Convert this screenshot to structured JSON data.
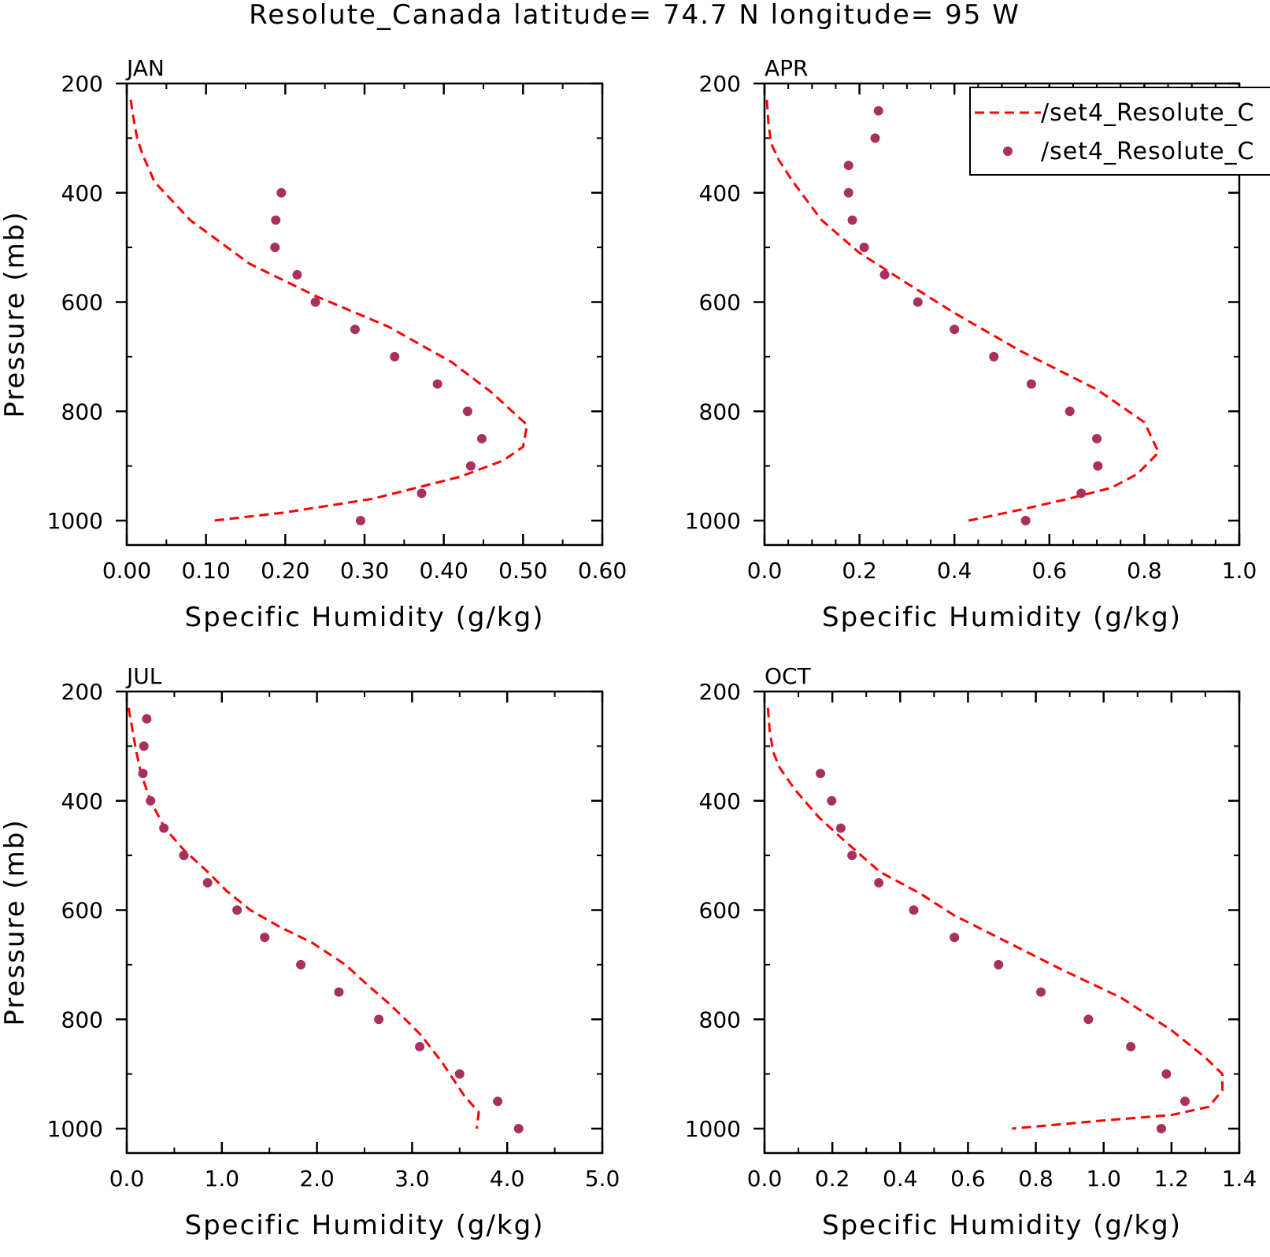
{
  "page": {
    "title": "Resolute_Canada  latitude= 74.7 N longitude= 95 W"
  },
  "legend": {
    "entries": [
      {
        "label": "/set4_Resolute_C",
        "style": "dashed-line",
        "color": "#ff0000"
      },
      {
        "label": "/set4_Resolute_C",
        "style": "dots",
        "color": "#a8305e"
      }
    ]
  },
  "colors": {
    "line": "#ff0000",
    "points": "#a8305e",
    "axis": "#000000"
  },
  "chart_data": [
    {
      "type": "line",
      "panel_label": "JAN",
      "xlabel": "Specific Humidity (g/kg)",
      "ylabel": "Pressure (mb)",
      "xlim": [
        0,
        0.6
      ],
      "ylim": [
        1000,
        200
      ],
      "xticks": [
        "0.00",
        "0.10",
        "0.20",
        "0.30",
        "0.40",
        "0.50",
        "0.60"
      ],
      "xtick_values": [
        0,
        0.1,
        0.2,
        0.3,
        0.4,
        0.5,
        0.6
      ],
      "yticks": [
        "200",
        "400",
        "600",
        "800",
        "1000"
      ],
      "ytick_values": [
        200,
        400,
        600,
        800,
        1000
      ],
      "series": [
        {
          "style": "dashed-line",
          "x": [
            0.005,
            0.008,
            0.013,
            0.02,
            0.035,
            0.08,
            0.155,
            0.24,
            0.33,
            0.41,
            0.46,
            0.505,
            0.5,
            0.475,
            0.42,
            0.31,
            0.2,
            0.11
          ],
          "y": [
            230,
            260,
            300,
            330,
            380,
            450,
            530,
            590,
            645,
            710,
            765,
            825,
            865,
            890,
            920,
            960,
            985,
            1000
          ]
        },
        {
          "style": "dots",
          "x": [
            0.195,
            0.188,
            0.187,
            0.215,
            0.238,
            0.288,
            0.338,
            0.392,
            0.43,
            0.448,
            0.434,
            0.372,
            0.295
          ],
          "y": [
            400,
            450,
            500,
            550,
            600,
            650,
            700,
            750,
            800,
            850,
            900,
            950,
            1000
          ]
        }
      ]
    },
    {
      "type": "line",
      "panel_label": "APR",
      "xlabel": "Specific Humidity (g/kg)",
      "ylabel": "",
      "xlim": [
        0,
        1.0
      ],
      "ylim": [
        1000,
        200
      ],
      "xticks": [
        "0.0",
        "0.2",
        "0.4",
        "0.6",
        "0.8",
        "1.0"
      ],
      "xtick_values": [
        0,
        0.2,
        0.4,
        0.6,
        0.8,
        1.0
      ],
      "yticks": [
        "200",
        "400",
        "600",
        "800",
        "1000"
      ],
      "ytick_values": [
        200,
        400,
        600,
        800,
        1000
      ],
      "series": [
        {
          "style": "dashed-line",
          "x": [
            0.005,
            0.008,
            0.014,
            0.03,
            0.06,
            0.12,
            0.2,
            0.29,
            0.4,
            0.54,
            0.7,
            0.8,
            0.83,
            0.785,
            0.73,
            0.64,
            0.54,
            0.43
          ],
          "y": [
            230,
            270,
            310,
            340,
            380,
            450,
            510,
            560,
            620,
            690,
            760,
            820,
            875,
            915,
            940,
            960,
            980,
            1000
          ]
        },
        {
          "style": "dots",
          "x": [
            0.24,
            0.233,
            0.177,
            0.177,
            0.185,
            0.21,
            0.253,
            0.323,
            0.4,
            0.483,
            0.562,
            0.643,
            0.7,
            0.702,
            0.667,
            0.55
          ],
          "y": [
            250,
            300,
            350,
            400,
            450,
            500,
            550,
            600,
            650,
            700,
            750,
            800,
            850,
            900,
            950,
            1000
          ]
        }
      ]
    },
    {
      "type": "line",
      "panel_label": "JUL",
      "xlabel": "Specific Humidity (g/kg)",
      "ylabel": "Pressure (mb)",
      "xlim": [
        0,
        5.0
      ],
      "ylim": [
        1000,
        200
      ],
      "xticks": [
        "0.0",
        "1.0",
        "2.0",
        "3.0",
        "4.0",
        "5.0"
      ],
      "xtick_values": [
        0,
        1,
        2,
        3,
        4,
        5
      ],
      "yticks": [
        "200",
        "400",
        "600",
        "800",
        "1000"
      ],
      "ytick_values": [
        200,
        400,
        600,
        800,
        1000
      ],
      "series": [
        {
          "style": "dashed-line",
          "x": [
            0.02,
            0.06,
            0.1,
            0.15,
            0.25,
            0.4,
            0.6,
            0.85,
            1.05,
            1.3,
            1.6,
            1.95,
            2.3,
            2.55,
            2.75,
            2.93,
            3.1,
            3.32,
            3.55,
            3.7,
            3.68
          ],
          "y": [
            230,
            270,
            310,
            350,
            400,
            450,
            490,
            530,
            565,
            600,
            630,
            660,
            700,
            740,
            770,
            800,
            830,
            880,
            940,
            970,
            1000
          ]
        },
        {
          "style": "dots",
          "x": [
            0.21,
            0.18,
            0.17,
            0.25,
            0.39,
            0.6,
            0.85,
            1.16,
            1.45,
            1.83,
            2.23,
            2.65,
            3.08,
            3.5,
            3.9,
            4.12
          ],
          "y": [
            250,
            300,
            350,
            400,
            450,
            500,
            550,
            600,
            650,
            700,
            750,
            800,
            850,
            900,
            950,
            1000
          ]
        }
      ]
    },
    {
      "type": "line",
      "panel_label": "OCT",
      "xlabel": "Specific Humidity (g/kg)",
      "ylabel": "",
      "xlim": [
        0,
        1.4
      ],
      "ylim": [
        1000,
        200
      ],
      "xticks": [
        "0.0",
        "0.2",
        "0.4",
        "0.6",
        "0.8",
        "1.0",
        "1.2",
        "1.4"
      ],
      "xtick_values": [
        0,
        0.2,
        0.4,
        0.6,
        0.8,
        1.0,
        1.2,
        1.4
      ],
      "yticks": [
        "200",
        "400",
        "600",
        "800",
        "1000"
      ],
      "ytick_values": [
        200,
        400,
        600,
        800,
        1000
      ],
      "series": [
        {
          "style": "dashed-line",
          "x": [
            0.01,
            0.015,
            0.025,
            0.045,
            0.09,
            0.16,
            0.23,
            0.34,
            0.46,
            0.56,
            0.72,
            0.88,
            1.05,
            1.2,
            1.3,
            1.35,
            1.35,
            1.31,
            1.2,
            1.0,
            0.73
          ],
          "y": [
            230,
            270,
            310,
            340,
            380,
            430,
            470,
            530,
            570,
            610,
            660,
            710,
            760,
            820,
            870,
            900,
            930,
            960,
            975,
            985,
            1000
          ]
        },
        {
          "style": "dots",
          "x": [
            0.165,
            0.198,
            0.225,
            0.258,
            0.337,
            0.44,
            0.56,
            0.69,
            0.815,
            0.955,
            1.08,
            1.185,
            1.24,
            1.17
          ],
          "y": [
            350,
            400,
            450,
            500,
            550,
            600,
            650,
            700,
            750,
            800,
            850,
            900,
            950,
            1000
          ]
        }
      ]
    }
  ]
}
